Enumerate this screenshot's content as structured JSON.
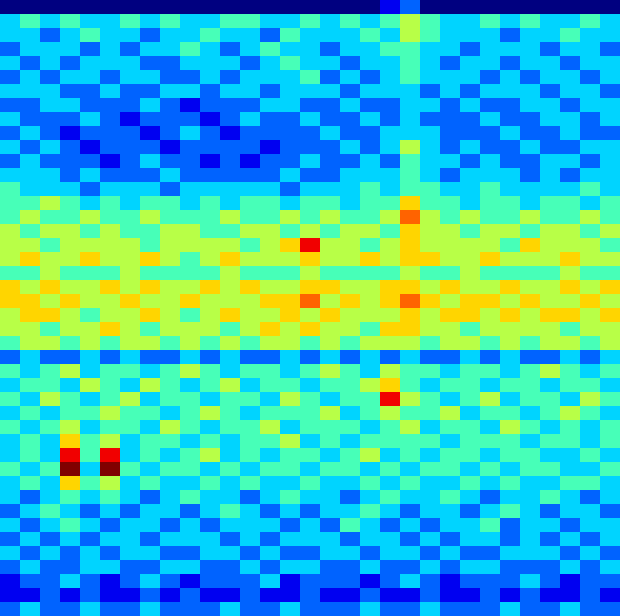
{
  "chart_data": {
    "type": "heatmap",
    "tick_labels": false,
    "values": [
      [
        0,
        0,
        0,
        0,
        0,
        0,
        0,
        0,
        0,
        0,
        0,
        0,
        0,
        0,
        0,
        0,
        0,
        0,
        0,
        1,
        2,
        0,
        0,
        0,
        0,
        0,
        0,
        0,
        0,
        0,
        0
      ],
      [
        3,
        4,
        3,
        4,
        3,
        3,
        4,
        3,
        4,
        3,
        3,
        4,
        4,
        3,
        3,
        4,
        3,
        4,
        3,
        4,
        5,
        4,
        3,
        3,
        4,
        3,
        4,
        3,
        3,
        4,
        3
      ],
      [
        3,
        3,
        2,
        3,
        4,
        3,
        3,
        2,
        3,
        3,
        4,
        3,
        3,
        2,
        4,
        3,
        3,
        3,
        4,
        3,
        5,
        4,
        3,
        3,
        3,
        2,
        3,
        3,
        4,
        3,
        3
      ],
      [
        2,
        3,
        3,
        3,
        2,
        3,
        2,
        3,
        3,
        4,
        3,
        2,
        3,
        4,
        3,
        3,
        2,
        3,
        3,
        4,
        4,
        3,
        3,
        2,
        3,
        3,
        3,
        2,
        3,
        3,
        2
      ],
      [
        3,
        2,
        3,
        2,
        3,
        3,
        3,
        2,
        2,
        3,
        3,
        3,
        2,
        3,
        4,
        3,
        3,
        2,
        3,
        3,
        4,
        3,
        2,
        3,
        3,
        2,
        3,
        3,
        2,
        3,
        3
      ],
      [
        2,
        3,
        2,
        3,
        3,
        2,
        3,
        3,
        2,
        2,
        3,
        2,
        3,
        3,
        3,
        4,
        2,
        3,
        2,
        3,
        4,
        3,
        3,
        3,
        2,
        3,
        2,
        3,
        3,
        2,
        3
      ],
      [
        3,
        3,
        3,
        2,
        2,
        3,
        2,
        2,
        3,
        3,
        2,
        3,
        3,
        2,
        3,
        3,
        3,
        2,
        3,
        3,
        3,
        2,
        3,
        2,
        3,
        3,
        3,
        2,
        3,
        3,
        2
      ],
      [
        2,
        2,
        3,
        3,
        2,
        2,
        2,
        3,
        2,
        1,
        2,
        2,
        2,
        3,
        3,
        2,
        2,
        3,
        2,
        2,
        3,
        3,
        2,
        3,
        2,
        2,
        3,
        3,
        2,
        3,
        3
      ],
      [
        3,
        2,
        2,
        2,
        3,
        2,
        1,
        2,
        2,
        2,
        1,
        2,
        3,
        2,
        2,
        3,
        2,
        2,
        3,
        2,
        3,
        2,
        2,
        2,
        3,
        2,
        2,
        3,
        3,
        2,
        3
      ],
      [
        2,
        3,
        2,
        1,
        2,
        2,
        2,
        1,
        2,
        3,
        2,
        1,
        2,
        2,
        2,
        2,
        3,
        2,
        2,
        3,
        3,
        3,
        2,
        2,
        2,
        3,
        2,
        2,
        3,
        2,
        2
      ],
      [
        3,
        2,
        3,
        2,
        1,
        2,
        2,
        2,
        1,
        2,
        2,
        2,
        2,
        1,
        2,
        2,
        2,
        3,
        2,
        3,
        5,
        3,
        2,
        3,
        2,
        2,
        3,
        2,
        2,
        3,
        3
      ],
      [
        2,
        3,
        2,
        2,
        2,
        1,
        2,
        3,
        2,
        2,
        1,
        2,
        1,
        2,
        2,
        3,
        2,
        2,
        3,
        2,
        4,
        3,
        3,
        2,
        3,
        2,
        2,
        3,
        3,
        2,
        3
      ],
      [
        3,
        3,
        3,
        2,
        3,
        2,
        2,
        2,
        3,
        2,
        2,
        2,
        2,
        2,
        3,
        2,
        2,
        3,
        3,
        3,
        4,
        3,
        2,
        3,
        3,
        3,
        2,
        3,
        2,
        3,
        3
      ],
      [
        4,
        3,
        3,
        3,
        2,
        3,
        3,
        3,
        2,
        3,
        3,
        3,
        3,
        3,
        2,
        3,
        3,
        3,
        4,
        3,
        4,
        4,
        3,
        3,
        4,
        3,
        3,
        3,
        3,
        4,
        3
      ],
      [
        4,
        4,
        5,
        4,
        3,
        4,
        3,
        4,
        4,
        3,
        4,
        3,
        4,
        4,
        3,
        4,
        4,
        3,
        4,
        4,
        6,
        4,
        4,
        3,
        4,
        4,
        3,
        4,
        4,
        3,
        4
      ],
      [
        4,
        5,
        4,
        4,
        5,
        4,
        4,
        5,
        4,
        4,
        4,
        5,
        4,
        4,
        5,
        4,
        5,
        4,
        4,
        5,
        7,
        5,
        4,
        5,
        4,
        4,
        5,
        4,
        4,
        5,
        4
      ],
      [
        5,
        4,
        5,
        5,
        4,
        5,
        4,
        4,
        5,
        5,
        4,
        4,
        5,
        5,
        4,
        5,
        4,
        5,
        5,
        4,
        6,
        5,
        5,
        4,
        5,
        5,
        4,
        5,
        5,
        4,
        5
      ],
      [
        5,
        5,
        4,
        5,
        5,
        5,
        5,
        4,
        5,
        5,
        5,
        5,
        4,
        5,
        6,
        8,
        5,
        5,
        4,
        5,
        6,
        5,
        5,
        5,
        5,
        4,
        6,
        5,
        5,
        5,
        4
      ],
      [
        5,
        6,
        5,
        5,
        6,
        5,
        5,
        6,
        5,
        4,
        5,
        6,
        5,
        5,
        5,
        6,
        5,
        5,
        6,
        5,
        6,
        6,
        5,
        5,
        6,
        5,
        5,
        5,
        6,
        5,
        5
      ],
      [
        4,
        4,
        5,
        4,
        4,
        4,
        5,
        4,
        4,
        4,
        4,
        5,
        4,
        4,
        4,
        5,
        4,
        4,
        4,
        4,
        5,
        4,
        4,
        5,
        4,
        4,
        4,
        4,
        5,
        4,
        4
      ],
      [
        6,
        5,
        6,
        5,
        5,
        6,
        5,
        6,
        5,
        5,
        6,
        5,
        6,
        5,
        5,
        6,
        6,
        5,
        5,
        6,
        6,
        5,
        6,
        5,
        5,
        6,
        5,
        5,
        6,
        5,
        6
      ],
      [
        6,
        6,
        5,
        6,
        5,
        5,
        6,
        5,
        5,
        6,
        5,
        5,
        5,
        6,
        6,
        7,
        5,
        6,
        5,
        6,
        7,
        6,
        5,
        6,
        6,
        5,
        6,
        5,
        5,
        6,
        5
      ],
      [
        5,
        6,
        6,
        5,
        4,
        5,
        5,
        6,
        5,
        4,
        5,
        6,
        5,
        5,
        6,
        5,
        6,
        5,
        5,
        5,
        6,
        5,
        6,
        6,
        5,
        6,
        5,
        6,
        6,
        5,
        6
      ],
      [
        5,
        5,
        4,
        5,
        5,
        6,
        5,
        4,
        5,
        5,
        5,
        4,
        5,
        6,
        5,
        6,
        5,
        5,
        4,
        6,
        6,
        5,
        5,
        4,
        5,
        5,
        5,
        5,
        4,
        5,
        5
      ],
      [
        4,
        5,
        5,
        4,
        5,
        4,
        5,
        5,
        4,
        5,
        4,
        5,
        4,
        5,
        5,
        4,
        5,
        4,
        5,
        5,
        5,
        4,
        5,
        5,
        4,
        5,
        4,
        5,
        5,
        4,
        5
      ],
      [
        2,
        3,
        2,
        2,
        3,
        2,
        3,
        2,
        2,
        3,
        2,
        3,
        2,
        2,
        3,
        2,
        3,
        2,
        3,
        2,
        3,
        2,
        2,
        3,
        2,
        3,
        2,
        2,
        3,
        2,
        3
      ],
      [
        4,
        3,
        4,
        5,
        3,
        4,
        4,
        3,
        4,
        5,
        4,
        3,
        4,
        4,
        3,
        4,
        5,
        4,
        3,
        5,
        4,
        4,
        3,
        4,
        4,
        3,
        4,
        5,
        4,
        3,
        4
      ],
      [
        3,
        4,
        4,
        3,
        5,
        4,
        3,
        5,
        4,
        3,
        4,
        5,
        3,
        4,
        4,
        3,
        4,
        4,
        5,
        6,
        4,
        3,
        4,
        4,
        3,
        4,
        4,
        3,
        4,
        4,
        3
      ],
      [
        4,
        3,
        5,
        4,
        3,
        4,
        5,
        3,
        4,
        4,
        3,
        4,
        4,
        3,
        5,
        4,
        3,
        4,
        4,
        8,
        5,
        4,
        3,
        4,
        5,
        3,
        4,
        4,
        3,
        5,
        4
      ],
      [
        3,
        4,
        3,
        4,
        4,
        5,
        4,
        4,
        3,
        4,
        5,
        4,
        3,
        4,
        4,
        4,
        5,
        3,
        4,
        5,
        4,
        4,
        5,
        3,
        4,
        4,
        3,
        4,
        5,
        4,
        3
      ],
      [
        4,
        3,
        4,
        5,
        3,
        4,
        4,
        3,
        5,
        4,
        3,
        4,
        4,
        5,
        3,
        4,
        4,
        4,
        3,
        4,
        5,
        3,
        4,
        4,
        3,
        5,
        4,
        3,
        4,
        3,
        4
      ],
      [
        3,
        4,
        3,
        6,
        4,
        5,
        3,
        4,
        4,
        3,
        4,
        3,
        4,
        4,
        5,
        3,
        4,
        3,
        4,
        4,
        4,
        4,
        3,
        4,
        4,
        4,
        3,
        4,
        4,
        3,
        4
      ],
      [
        3,
        4,
        3,
        8,
        4,
        8,
        3,
        4,
        3,
        4,
        5,
        3,
        4,
        3,
        4,
        4,
        3,
        4,
        5,
        3,
        4,
        3,
        4,
        4,
        3,
        4,
        4,
        3,
        3,
        4,
        3
      ],
      [
        4,
        3,
        4,
        9,
        3,
        9,
        4,
        3,
        4,
        4,
        3,
        4,
        3,
        4,
        4,
        3,
        4,
        4,
        3,
        4,
        3,
        4,
        4,
        3,
        4,
        3,
        4,
        4,
        3,
        3,
        4
      ],
      [
        3,
        4,
        3,
        6,
        4,
        5,
        3,
        4,
        3,
        3,
        4,
        3,
        4,
        3,
        3,
        4,
        3,
        3,
        4,
        3,
        4,
        3,
        3,
        4,
        3,
        4,
        3,
        3,
        4,
        4,
        3
      ],
      [
        3,
        2,
        3,
        4,
        3,
        4,
        3,
        2,
        3,
        4,
        3,
        3,
        2,
        3,
        4,
        3,
        3,
        2,
        3,
        4,
        3,
        3,
        4,
        3,
        2,
        3,
        3,
        4,
        3,
        2,
        3
      ],
      [
        2,
        3,
        4,
        3,
        2,
        3,
        2,
        3,
        3,
        2,
        3,
        4,
        3,
        2,
        3,
        2,
        3,
        3,
        4,
        3,
        2,
        3,
        3,
        2,
        3,
        4,
        3,
        2,
        3,
        3,
        2
      ],
      [
        3,
        2,
        3,
        4,
        3,
        2,
        3,
        3,
        2,
        3,
        2,
        3,
        3,
        3,
        2,
        3,
        2,
        4,
        3,
        2,
        3,
        2,
        3,
        3,
        4,
        2,
        3,
        3,
        2,
        3,
        3
      ],
      [
        2,
        3,
        2,
        3,
        2,
        3,
        3,
        2,
        3,
        3,
        3,
        2,
        3,
        2,
        3,
        3,
        3,
        2,
        3,
        3,
        2,
        3,
        2,
        3,
        3,
        2,
        3,
        2,
        3,
        2,
        3
      ],
      [
        3,
        2,
        3,
        2,
        3,
        2,
        3,
        3,
        2,
        2,
        3,
        3,
        2,
        3,
        2,
        2,
        3,
        3,
        2,
        3,
        3,
        2,
        3,
        2,
        2,
        3,
        3,
        3,
        2,
        3,
        2
      ],
      [
        2,
        3,
        2,
        2,
        3,
        3,
        2,
        2,
        3,
        3,
        2,
        2,
        3,
        2,
        3,
        3,
        2,
        2,
        3,
        2,
        2,
        3,
        2,
        3,
        3,
        2,
        2,
        2,
        3,
        2,
        3
      ],
      [
        1,
        2,
        2,
        3,
        2,
        1,
        2,
        3,
        2,
        1,
        2,
        2,
        2,
        3,
        1,
        2,
        2,
        2,
        1,
        2,
        3,
        2,
        1,
        2,
        2,
        2,
        3,
        2,
        1,
        2,
        2
      ],
      [
        1,
        1,
        2,
        1,
        2,
        1,
        1,
        2,
        1,
        2,
        1,
        1,
        2,
        1,
        1,
        2,
        1,
        1,
        2,
        1,
        1,
        2,
        1,
        1,
        2,
        1,
        2,
        1,
        1,
        2,
        1
      ],
      [
        2,
        3,
        2,
        2,
        3,
        2,
        2,
        3,
        2,
        2,
        2,
        3,
        2,
        2,
        3,
        2,
        2,
        2,
        3,
        2,
        2,
        3,
        2,
        2,
        2,
        3,
        2,
        2,
        3,
        2,
        2
      ]
    ]
  }
}
